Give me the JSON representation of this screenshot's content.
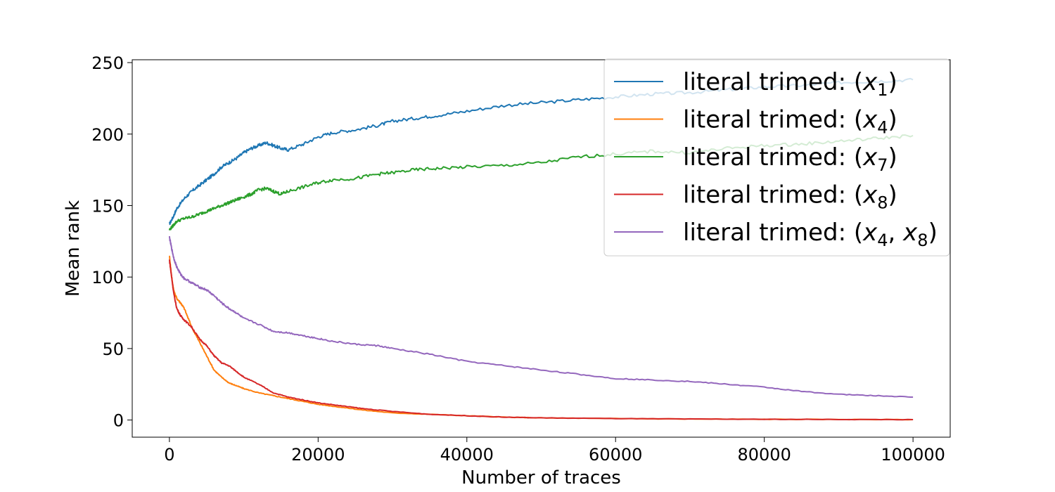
{
  "chart_data": {
    "type": "line",
    "title": "",
    "xlabel": "Number of traces",
    "ylabel": "Mean rank",
    "xlim": [
      -5000,
      105000
    ],
    "ylim": [
      -12,
      252
    ],
    "xticks": [
      0,
      20000,
      40000,
      60000,
      80000,
      100000
    ],
    "yticks": [
      0,
      50,
      100,
      150,
      200,
      250
    ],
    "grid": false,
    "legend_position": "top-right",
    "series": [
      {
        "name": "literal trimed: (x1)",
        "label_base": "literal trimed: (x",
        "label_sub": "1",
        "label_end": ")",
        "color": "#1f77b4",
        "x": [
          0,
          500,
          1000,
          2000,
          3000,
          4000,
          5000,
          6000,
          7000,
          8000,
          9000,
          10000,
          11000,
          12000,
          13000,
          14000,
          15000,
          16000,
          18000,
          20000,
          22000,
          25000,
          28000,
          30000,
          33000,
          36000,
          40000,
          45000,
          50000,
          55000,
          60000,
          65000,
          70000,
          75000,
          80000,
          85000,
          90000,
          95000,
          100000
        ],
        "y": [
          137,
          142,
          148,
          155,
          160,
          164,
          168,
          172,
          177,
          180,
          183,
          187,
          190,
          192,
          194,
          192,
          190,
          189,
          193,
          198,
          201,
          203,
          206,
          209,
          211,
          213,
          216,
          220,
          222,
          224,
          226,
          228,
          229,
          231,
          233,
          234,
          236,
          237,
          238
        ]
      },
      {
        "name": "literal trimed: (x4)",
        "label_base": "literal trimed: (x",
        "label_sub": "4",
        "label_end": ")",
        "color": "#ff7f0e",
        "x": [
          0,
          300,
          600,
          1000,
          1500,
          2000,
          3000,
          4000,
          5000,
          6000,
          7000,
          8000,
          9000,
          10000,
          12000,
          14000,
          16000,
          18000,
          20000,
          23000,
          26000,
          30000,
          35000,
          40000,
          45000,
          50000,
          60000,
          70000,
          80000,
          90000,
          100000
        ],
        "y": [
          115,
          100,
          90,
          85,
          82,
          78,
          65,
          55,
          45,
          35,
          30,
          26,
          24,
          22,
          19,
          17,
          15,
          13,
          11,
          9,
          7,
          5,
          4,
          3,
          2,
          1.5,
          1,
          0.7,
          0.5,
          0.4,
          0.3
        ]
      },
      {
        "name": "literal trimed: (x7)",
        "label_base": "literal trimed: (x",
        "label_sub": "7",
        "label_end": ")",
        "color": "#2ca02c",
        "x": [
          0,
          500,
          1000,
          2000,
          3000,
          4000,
          5000,
          6000,
          7000,
          8000,
          9000,
          10000,
          11000,
          12000,
          13000,
          14000,
          15000,
          16000,
          18000,
          20000,
          22000,
          25000,
          28000,
          30000,
          33000,
          36000,
          40000,
          45000,
          50000,
          55000,
          60000,
          65000,
          70000,
          75000,
          80000,
          85000,
          90000,
          95000,
          100000
        ],
        "y": [
          133,
          136,
          139,
          141,
          142,
          144,
          146,
          148,
          150,
          152,
          154,
          156,
          158,
          161,
          162,
          160,
          158,
          160,
          163,
          166,
          168,
          169,
          172,
          173,
          175,
          176,
          177,
          178,
          180,
          184,
          186,
          188,
          187,
          190,
          192,
          193,
          195,
          197,
          199
        ]
      },
      {
        "name": "literal trimed: (x8)",
        "label_base": "literal trimed: (x",
        "label_sub": "8",
        "label_end": ")",
        "color": "#d62728",
        "x": [
          0,
          300,
          600,
          1000,
          1500,
          2000,
          3000,
          4000,
          5000,
          6000,
          7000,
          8000,
          9000,
          10000,
          12000,
          14000,
          16000,
          18000,
          20000,
          23000,
          26000,
          30000,
          35000,
          40000,
          45000,
          50000,
          60000,
          70000,
          80000,
          90000,
          100000
        ],
        "y": [
          112,
          100,
          88,
          78,
          73,
          70,
          65,
          57,
          52,
          45,
          40,
          38,
          34,
          30,
          25,
          19,
          16,
          14,
          12,
          10,
          8,
          6,
          4,
          3,
          2,
          1.5,
          1,
          0.7,
          0.5,
          0.4,
          0.3
        ]
      },
      {
        "name": "literal trimed: (x4, x8)",
        "label_base": "literal trimed: (x",
        "label_sub": "4",
        "label_mid": ", x",
        "label_sub2": "8",
        "label_end": ")",
        "color": "#9467bd",
        "x": [
          0,
          300,
          600,
          1000,
          1500,
          2000,
          3000,
          4000,
          5000,
          6000,
          7000,
          8000,
          9000,
          10000,
          12000,
          14000,
          16000,
          18000,
          20000,
          22000,
          25000,
          28000,
          30000,
          35000,
          40000,
          45000,
          50000,
          55000,
          60000,
          65000,
          70000,
          75000,
          80000,
          85000,
          90000,
          95000,
          100000
        ],
        "y": [
          128,
          120,
          113,
          107,
          102,
          99,
          96,
          93,
          91,
          87,
          82,
          78,
          75,
          71,
          67,
          62,
          61,
          59,
          57,
          55,
          53,
          52,
          50,
          46,
          41,
          38,
          35,
          32,
          29,
          28,
          27,
          25,
          23,
          20,
          18,
          17,
          16
        ]
      }
    ]
  }
}
